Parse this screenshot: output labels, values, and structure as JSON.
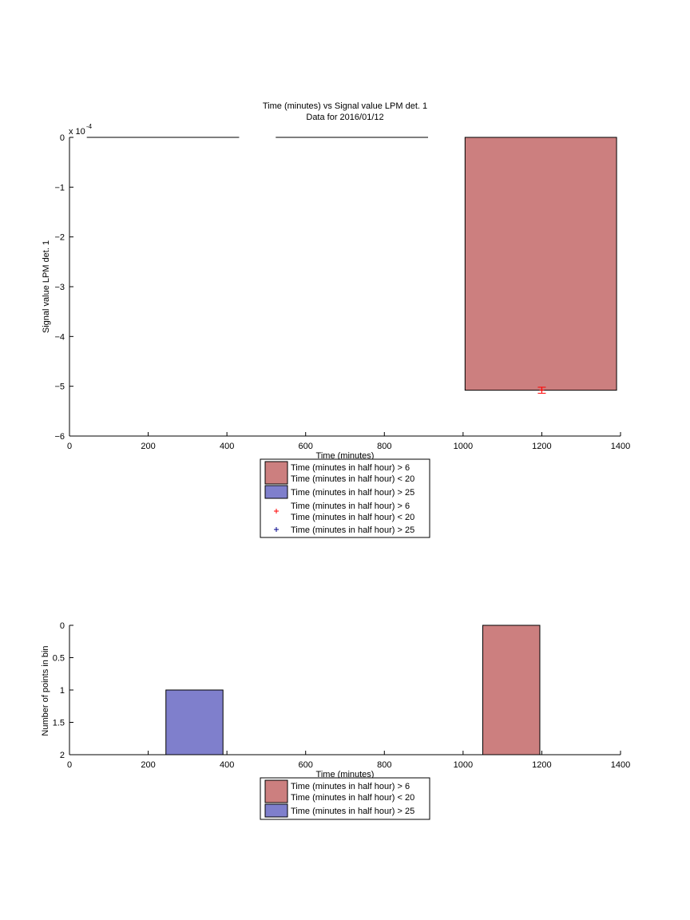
{
  "chart_data": [
    {
      "type": "bar",
      "title": "Time (minutes) vs Signal value LPM det. 1",
      "subtitle": "Data for 2016/01/12",
      "xlabel": "Time (minutes)",
      "ylabel": "Signal value LPM det. 1",
      "xlim": [
        0,
        1400
      ],
      "ylim": [
        -6,
        0
      ],
      "y_exponent_label": "x 10",
      "y_exponent": "-4",
      "y_scale_factor": 0.0001,
      "grid": false,
      "xticks": [
        "0",
        "200",
        "400",
        "600",
        "800",
        "1000",
        "1200",
        "1400"
      ],
      "yticks": [
        "0",
        "−1",
        "−2",
        "−3",
        "−4",
        "−5",
        "−6"
      ],
      "series": [
        {
          "name": "Time (minutes in half hour) > 6\nTime (minutes in half hour) < 20",
          "kind": "bar",
          "color": "#cc7f7f",
          "bars": [
            {
              "x0": 1005,
              "x1": 1390,
              "value": -5.08
            }
          ]
        },
        {
          "name": "Time (minutes in half hour) > 25",
          "kind": "bar",
          "color": "#7f7fcc",
          "bars": [
            {
              "x0": 45,
              "x1": 430,
              "value": 0
            },
            {
              "x0": 525,
              "x1": 910,
              "value": 0
            }
          ]
        },
        {
          "name": "Time (minutes in half hour) > 6\nTime (minutes in half hour) < 20",
          "kind": "marker",
          "color": "#ff0000",
          "points": [
            {
              "x": 1200,
              "y": -5.08,
              "err": 0.06
            }
          ]
        },
        {
          "name": "Time (minutes in half hour) > 25",
          "kind": "marker",
          "color": "#00008b",
          "points": []
        }
      ],
      "legend": {
        "placement": "below",
        "entries": [
          {
            "label": "Time (minutes in half hour) > 6\nTime (minutes in half hour) < 20",
            "symbol": "patch",
            "color": "#cc7f7f"
          },
          {
            "label": "Time (minutes in half hour) > 25",
            "symbol": "patch",
            "color": "#7f7fcc"
          },
          {
            "label": "Time (minutes in half hour) > 6\nTime (minutes in half hour) < 20",
            "symbol": "plus",
            "color": "#ff0000"
          },
          {
            "label": "Time (minutes in half hour) > 25",
            "symbol": "plus",
            "color": "#00008b"
          }
        ]
      }
    },
    {
      "type": "bar",
      "title": "",
      "xlabel": "Time (minutes)",
      "ylabel": "Number of points in bin",
      "xlim": [
        0,
        1400
      ],
      "ylim": [
        0,
        2
      ],
      "grid": false,
      "xticks": [
        "0",
        "200",
        "400",
        "600",
        "800",
        "1000",
        "1200",
        "1400"
      ],
      "yticks": [
        "0",
        "0.5",
        "1",
        "1.5",
        "2"
      ],
      "series": [
        {
          "name": "Time (minutes in half hour) > 6\nTime (minutes in half hour) < 20",
          "kind": "bar",
          "color": "#cc7f7f",
          "bars": [
            {
              "x0": 1050,
              "x1": 1195,
              "value": 2
            }
          ]
        },
        {
          "name": "Time (minutes in half hour) > 25",
          "kind": "bar",
          "color": "#7f7fcc",
          "bars": [
            {
              "x0": 245,
              "x1": 390,
              "value": 1
            }
          ]
        }
      ],
      "legend": {
        "placement": "below",
        "entries": [
          {
            "label": "Time (minutes in half hour) > 6\nTime (minutes in half hour) < 20",
            "symbol": "patch",
            "color": "#cc7f7f"
          },
          {
            "label": "Time (minutes in half hour) > 25",
            "symbol": "patch",
            "color": "#7f7fcc"
          }
        ]
      }
    }
  ]
}
